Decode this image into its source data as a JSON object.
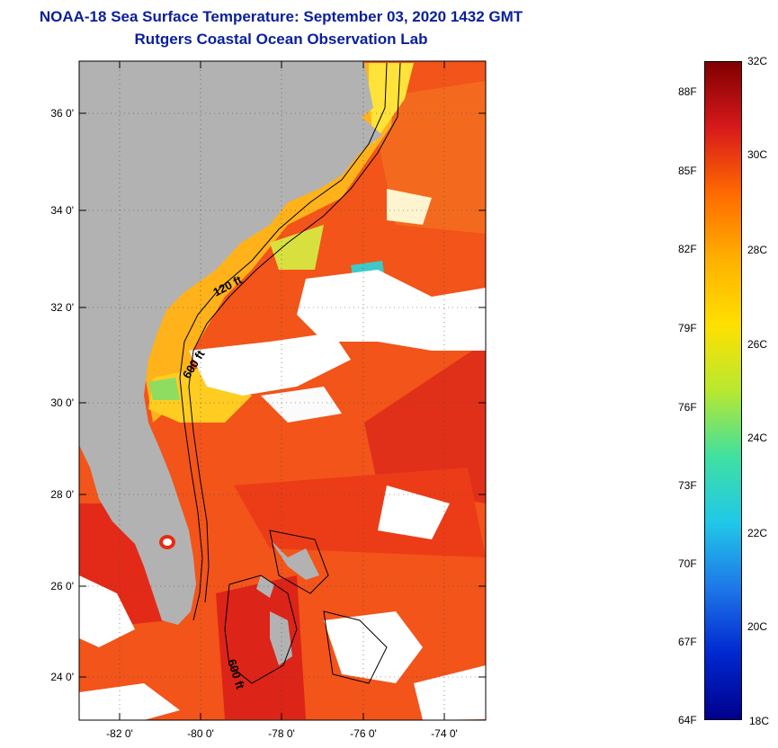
{
  "header": {
    "title": "NOAA-18 Sea Surface Temperature:  September 03, 2020 1432 GMT",
    "subtitle": "Rutgers Coastal Ocean Observation Lab"
  },
  "map": {
    "lat_labels": [
      "36 0'",
      "34 0'",
      "32 0'",
      "30 0'",
      "28 0'",
      "26 0'",
      "24 0'"
    ],
    "lon_labels": [
      "-82 0'",
      "-80 0'",
      "-78 0'",
      "-76 0'",
      "-74 0'"
    ],
    "contour_labels": [
      "120 ft",
      "600 ft",
      "600 ft"
    ]
  },
  "colorbar": {
    "celsius_labels": [
      "32C",
      "30C",
      "28C",
      "26C",
      "24C",
      "22C",
      "20C",
      "18C"
    ],
    "fahrenheit_labels": [
      "88F",
      "85F",
      "82F",
      "79F",
      "76F",
      "73F",
      "70F",
      "67F",
      "64F"
    ],
    "colors": [
      "#800000",
      "#d7191c",
      "#ff6a00",
      "#ffb000",
      "#ffe000",
      "#b8e830",
      "#40e0a0",
      "#20c8e8",
      "#1e78e8",
      "#0028d0",
      "#00008c"
    ]
  }
}
